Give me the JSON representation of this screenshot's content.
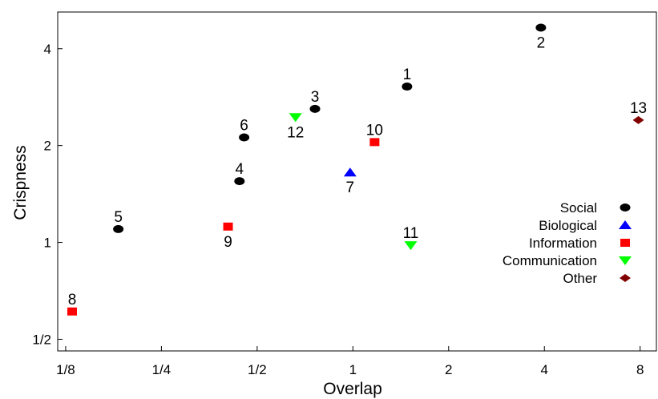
{
  "chart_data": {
    "type": "scatter",
    "xlabel": "Overlap",
    "ylabel": "Crispness",
    "x_scale": "log2",
    "y_scale": "log2",
    "xlim": [
      0.118,
      9.0
    ],
    "ylim": [
      0.46,
      5.2
    ],
    "x_ticks": [
      {
        "value": 0.125,
        "label": "1/8"
      },
      {
        "value": 0.25,
        "label": "1/4"
      },
      {
        "value": 0.5,
        "label": "1/2"
      },
      {
        "value": 1,
        "label": "1"
      },
      {
        "value": 2,
        "label": "2"
      },
      {
        "value": 4,
        "label": "4"
      },
      {
        "value": 8,
        "label": "8"
      }
    ],
    "y_ticks": [
      {
        "value": 0.5,
        "label": "1/2"
      },
      {
        "value": 1,
        "label": "1"
      },
      {
        "value": 2,
        "label": "2"
      },
      {
        "value": 4,
        "label": "4"
      }
    ],
    "grid": false,
    "legend_position": "right",
    "series": [
      {
        "name": "Social",
        "marker": "ellipse",
        "color": "#000000",
        "points": [
          {
            "label": "1",
            "x": 1.48,
            "y": 3.05
          },
          {
            "label": "2",
            "x": 3.9,
            "y": 4.65
          },
          {
            "label": "3",
            "x": 0.76,
            "y": 2.6
          },
          {
            "label": "4",
            "x": 0.44,
            "y": 1.55
          },
          {
            "label": "5",
            "x": 0.183,
            "y": 1.1
          },
          {
            "label": "6",
            "x": 0.455,
            "y": 2.12
          }
        ]
      },
      {
        "name": "Biological",
        "marker": "triangle-up",
        "color": "#0000ff",
        "points": [
          {
            "label": "7",
            "x": 0.98,
            "y": 1.65
          }
        ]
      },
      {
        "name": "Information",
        "marker": "square",
        "color": "#ff0000",
        "points": [
          {
            "label": "8",
            "x": 0.131,
            "y": 0.61
          },
          {
            "label": "9",
            "x": 0.405,
            "y": 1.12
          },
          {
            "label": "10",
            "x": 1.17,
            "y": 2.05
          }
        ]
      },
      {
        "name": "Communication",
        "marker": "triangle-down",
        "color": "#00ff00",
        "points": [
          {
            "label": "11",
            "x": 1.52,
            "y": 0.98
          },
          {
            "label": "12",
            "x": 0.66,
            "y": 2.45
          }
        ]
      },
      {
        "name": "Other",
        "marker": "diamond",
        "color": "#800000",
        "points": [
          {
            "label": "13",
            "x": 7.9,
            "y": 2.4
          }
        ]
      }
    ]
  }
}
